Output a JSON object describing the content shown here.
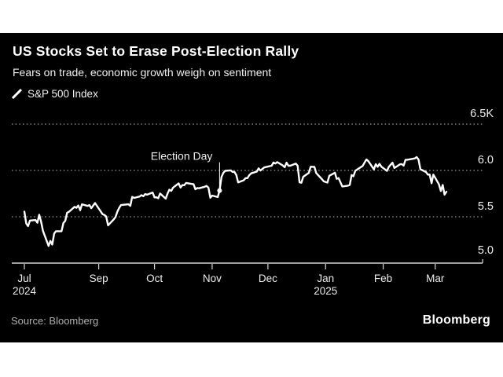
{
  "header": {
    "title": "US Stocks Set to Erase Post-Election Rally",
    "subtitle": "Fears on trade, economic growth weigh on sentiment"
  },
  "legend": {
    "series_label": "S&P 500 Index"
  },
  "footer": {
    "source": "Source: Bloomberg",
    "brand": "Bloomberg"
  },
  "colors": {
    "page_background": "#ffffff",
    "chart_background": "#000000",
    "series_line": "#ffffff",
    "gridline": "#9a9a9a",
    "axis": "#d6d6d6",
    "tick_label": "#ededed",
    "annotation_text": "#f0f0f0",
    "source_text": "#b0b0b0"
  },
  "chart_data": {
    "type": "line",
    "title": "US Stocks Set to Erase Post-Election Rally",
    "subtitle": "Fears on trade, economic growth weigh on sentiment",
    "series_name": "S&P 500 Index",
    "xlabel": "",
    "ylabel": "",
    "unit": "index points (thousands shown as K)",
    "ylim": [
      5000,
      6500
    ],
    "grid": "horizontal dotted",
    "legend_position": "top-left",
    "y_ticks": [
      {
        "value": 5000,
        "label": "5.0",
        "gridline": false
      },
      {
        "value": 5500,
        "label": "5.5",
        "gridline": true
      },
      {
        "value": 6000,
        "label": "6.0",
        "gridline": true
      },
      {
        "value": 6500,
        "label": "6.5K",
        "gridline": true
      }
    ],
    "x_ticks": [
      {
        "date": "2024-07-23",
        "label": "Jul",
        "sublabel": "2024"
      },
      {
        "date": "2024-09-01",
        "label": "Sep"
      },
      {
        "date": "2024-10-01",
        "label": "Oct"
      },
      {
        "date": "2024-11-01",
        "label": "Nov"
      },
      {
        "date": "2024-12-01",
        "label": "Dec"
      },
      {
        "date": "2025-01-01",
        "label": "Jan",
        "sublabel": "2025"
      },
      {
        "date": "2025-02-01",
        "label": "Feb"
      },
      {
        "date": "2025-03-01",
        "label": "Mar"
      }
    ],
    "annotations": [
      {
        "label": "Election Day",
        "date": "2024-11-05",
        "value": 5783
      }
    ],
    "points": [
      [
        "2024-07-23",
        5556
      ],
      [
        "2024-07-24",
        5427
      ],
      [
        "2024-07-25",
        5399
      ],
      [
        "2024-07-26",
        5459
      ],
      [
        "2024-07-29",
        5464
      ],
      [
        "2024-07-30",
        5436
      ],
      [
        "2024-07-31",
        5522
      ],
      [
        "2024-08-01",
        5447
      ],
      [
        "2024-08-02",
        5347
      ],
      [
        "2024-08-05",
        5186
      ],
      [
        "2024-08-06",
        5240
      ],
      [
        "2024-08-07",
        5200
      ],
      [
        "2024-08-08",
        5319
      ],
      [
        "2024-08-09",
        5344
      ],
      [
        "2024-08-12",
        5344
      ],
      [
        "2024-08-13",
        5434
      ],
      [
        "2024-08-14",
        5455
      ],
      [
        "2024-08-15",
        5543
      ],
      [
        "2024-08-16",
        5554
      ],
      [
        "2024-08-19",
        5608
      ],
      [
        "2024-08-20",
        5597
      ],
      [
        "2024-08-21",
        5621
      ],
      [
        "2024-08-22",
        5571
      ],
      [
        "2024-08-23",
        5635
      ],
      [
        "2024-08-26",
        5617
      ],
      [
        "2024-08-27",
        5626
      ],
      [
        "2024-08-28",
        5592
      ],
      [
        "2024-08-30",
        5648
      ],
      [
        "2024-09-03",
        5529
      ],
      [
        "2024-09-04",
        5520
      ],
      [
        "2024-09-05",
        5503
      ],
      [
        "2024-09-06",
        5408
      ],
      [
        "2024-09-09",
        5471
      ],
      [
        "2024-09-10",
        5496
      ],
      [
        "2024-09-11",
        5554
      ],
      [
        "2024-09-12",
        5596
      ],
      [
        "2024-09-13",
        5626
      ],
      [
        "2024-09-16",
        5633
      ],
      [
        "2024-09-17",
        5635
      ],
      [
        "2024-09-18",
        5618
      ],
      [
        "2024-09-19",
        5714
      ],
      [
        "2024-09-20",
        5703
      ],
      [
        "2024-09-23",
        5719
      ],
      [
        "2024-09-24",
        5733
      ],
      [
        "2024-09-25",
        5722
      ],
      [
        "2024-09-26",
        5745
      ],
      [
        "2024-09-27",
        5738
      ],
      [
        "2024-09-30",
        5762
      ],
      [
        "2024-10-01",
        5709
      ],
      [
        "2024-10-02",
        5710
      ],
      [
        "2024-10-03",
        5700
      ],
      [
        "2024-10-04",
        5751
      ],
      [
        "2024-10-07",
        5696
      ],
      [
        "2024-10-08",
        5751
      ],
      [
        "2024-10-09",
        5792
      ],
      [
        "2024-10-10",
        5780
      ],
      [
        "2024-10-11",
        5815
      ],
      [
        "2024-10-14",
        5860
      ],
      [
        "2024-10-15",
        5815
      ],
      [
        "2024-10-16",
        5842
      ],
      [
        "2024-10-17",
        5841
      ],
      [
        "2024-10-18",
        5865
      ],
      [
        "2024-10-21",
        5854
      ],
      [
        "2024-10-22",
        5851
      ],
      [
        "2024-10-23",
        5797
      ],
      [
        "2024-10-24",
        5810
      ],
      [
        "2024-10-25",
        5808
      ],
      [
        "2024-10-28",
        5824
      ],
      [
        "2024-10-29",
        5833
      ],
      [
        "2024-10-30",
        5814
      ],
      [
        "2024-10-31",
        5705
      ],
      [
        "2024-11-01",
        5729
      ],
      [
        "2024-11-04",
        5713
      ],
      [
        "2024-11-05",
        5783
      ],
      [
        "2024-11-06",
        5929
      ],
      [
        "2024-11-07",
        5973
      ],
      [
        "2024-11-08",
        5996
      ],
      [
        "2024-11-11",
        6001
      ],
      [
        "2024-11-12",
        5984
      ],
      [
        "2024-11-13",
        5985
      ],
      [
        "2024-11-14",
        5949
      ],
      [
        "2024-11-15",
        5871
      ],
      [
        "2024-11-18",
        5894
      ],
      [
        "2024-11-19",
        5917
      ],
      [
        "2024-11-20",
        5917
      ],
      [
        "2024-11-21",
        5949
      ],
      [
        "2024-11-22",
        5969
      ],
      [
        "2024-11-25",
        5987
      ],
      [
        "2024-11-26",
        6022
      ],
      [
        "2024-11-27",
        5999
      ],
      [
        "2024-11-29",
        6032
      ],
      [
        "2024-12-02",
        6047
      ],
      [
        "2024-12-03",
        6050
      ],
      [
        "2024-12-04",
        6086
      ],
      [
        "2024-12-05",
        6075
      ],
      [
        "2024-12-06",
        6090
      ],
      [
        "2024-12-09",
        6053
      ],
      [
        "2024-12-10",
        6035
      ],
      [
        "2024-12-11",
        6084
      ],
      [
        "2024-12-12",
        6051
      ],
      [
        "2024-12-13",
        6051
      ],
      [
        "2024-12-16",
        6074
      ],
      [
        "2024-12-17",
        6051
      ],
      [
        "2024-12-18",
        5872
      ],
      [
        "2024-12-19",
        5867
      ],
      [
        "2024-12-20",
        5931
      ],
      [
        "2024-12-23",
        5974
      ],
      [
        "2024-12-24",
        6040
      ],
      [
        "2024-12-26",
        6038
      ],
      [
        "2024-12-27",
        5971
      ],
      [
        "2024-12-30",
        5907
      ],
      [
        "2024-12-31",
        5882
      ],
      [
        "2025-01-02",
        5869
      ],
      [
        "2025-01-03",
        5942
      ],
      [
        "2025-01-06",
        5975
      ],
      [
        "2025-01-07",
        5909
      ],
      [
        "2025-01-08",
        5918
      ],
      [
        "2025-01-10",
        5827
      ],
      [
        "2025-01-13",
        5836
      ],
      [
        "2025-01-14",
        5843
      ],
      [
        "2025-01-15",
        5950
      ],
      [
        "2025-01-16",
        5937
      ],
      [
        "2025-01-17",
        5997
      ],
      [
        "2025-01-21",
        6049
      ],
      [
        "2025-01-22",
        6086
      ],
      [
        "2025-01-23",
        6119
      ],
      [
        "2025-01-24",
        6101
      ],
      [
        "2025-01-27",
        6012
      ],
      [
        "2025-01-28",
        6068
      ],
      [
        "2025-01-29",
        6039
      ],
      [
        "2025-01-30",
        6071
      ],
      [
        "2025-01-31",
        6041
      ],
      [
        "2025-02-03",
        5995
      ],
      [
        "2025-02-04",
        6038
      ],
      [
        "2025-02-05",
        6061
      ],
      [
        "2025-02-06",
        6084
      ],
      [
        "2025-02-07",
        6026
      ],
      [
        "2025-02-10",
        6066
      ],
      [
        "2025-02-11",
        6069
      ],
      [
        "2025-02-12",
        6052
      ],
      [
        "2025-02-13",
        6115
      ],
      [
        "2025-02-14",
        6115
      ],
      [
        "2025-02-18",
        6130
      ],
      [
        "2025-02-19",
        6144
      ],
      [
        "2025-02-20",
        6118
      ],
      [
        "2025-02-21",
        6013
      ],
      [
        "2025-02-24",
        5983
      ],
      [
        "2025-02-25",
        5955
      ],
      [
        "2025-02-26",
        5956
      ],
      [
        "2025-02-27",
        5862
      ],
      [
        "2025-02-28",
        5955
      ],
      [
        "2025-03-03",
        5850
      ],
      [
        "2025-03-04",
        5778
      ],
      [
        "2025-03-05",
        5843
      ],
      [
        "2025-03-06",
        5739
      ],
      [
        "2025-03-07",
        5770
      ]
    ]
  }
}
